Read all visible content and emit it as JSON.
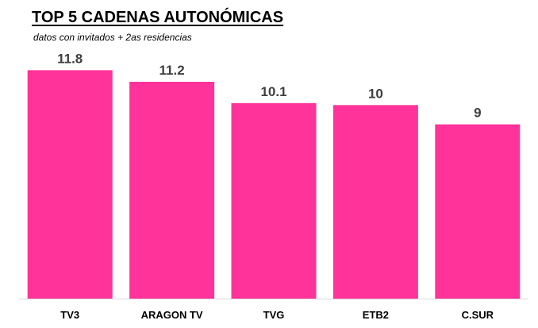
{
  "header": {
    "title": "TOP 5 CADENAS AUTONÓMICAS",
    "subtitle": "datos con invitados + 2as residencias"
  },
  "colors": {
    "bar": "#FF3399",
    "axis": "#D9D9D9"
  },
  "chart_data": {
    "type": "bar",
    "title": "TOP 5 CADENAS AUTONÓMICAS",
    "subtitle": "datos con invitados + 2as residencias",
    "categories": [
      "TV3",
      "ARAGON TV",
      "TVG",
      "ETB2",
      "C.SUR"
    ],
    "values": [
      11.8,
      11.2,
      10.1,
      10,
      9
    ],
    "value_labels": [
      "11.8",
      "11.2",
      "10.1",
      "10",
      "9"
    ],
    "ylim": [
      0,
      16
    ],
    "grid": false,
    "legend": "none"
  }
}
